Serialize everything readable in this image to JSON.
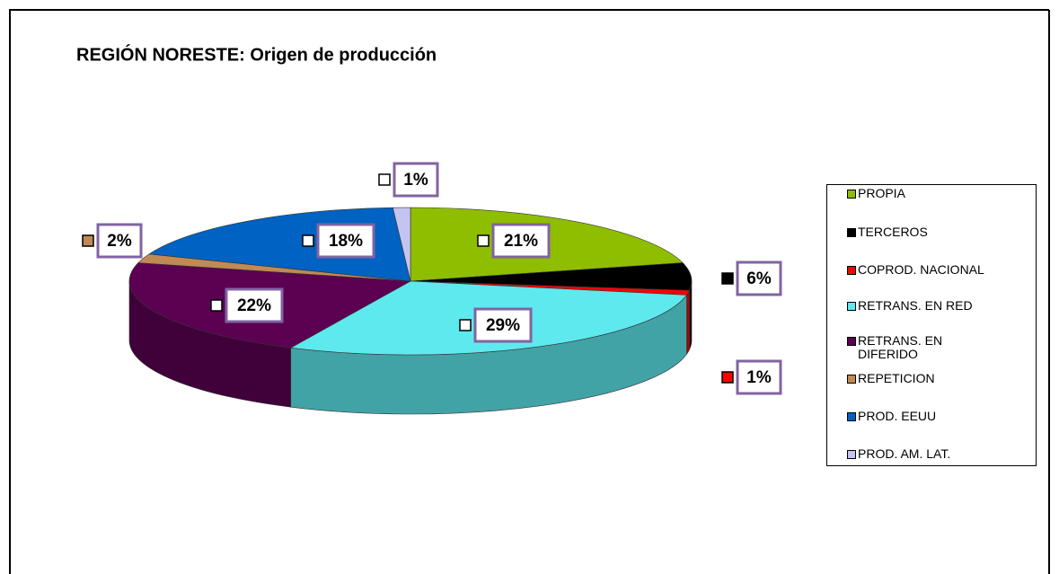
{
  "chart_data": {
    "type": "pie3d",
    "title": "REGIÓN NORESTE: Origen de producción",
    "categories": [
      "PROPIA",
      "TERCEROS",
      "COPROD. NACIONAL",
      "RETRANS. EN RED",
      "RETRANS. EN DIFERIDO",
      "REPETICION",
      "PROD. EEUU",
      "PROD. AM. LAT."
    ],
    "values": [
      21,
      6,
      1,
      29,
      22,
      2,
      18,
      1
    ],
    "value_labels": [
      "21%",
      "6%",
      "1%",
      "29%",
      "22%",
      "2%",
      "18%",
      "1%"
    ],
    "colors": [
      "#8fbd00",
      "#000000",
      "#ff0000",
      "#5ee9ee",
      "#5c0052",
      "#c08a55",
      "#0062c2",
      "#c4c4f2"
    ],
    "legend": "right"
  }
}
